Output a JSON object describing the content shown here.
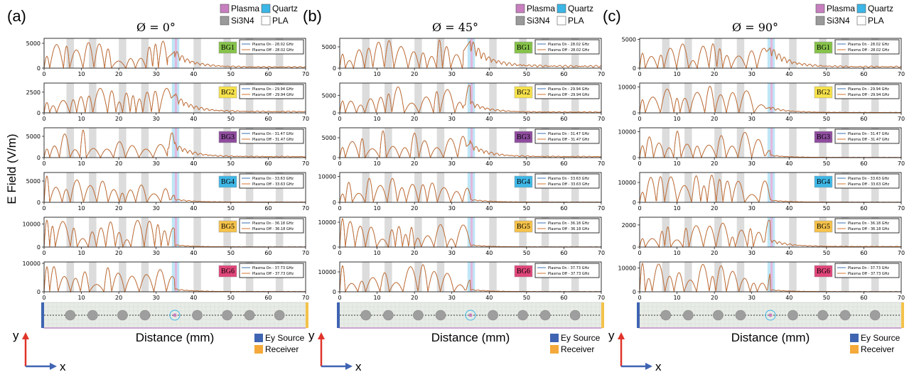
{
  "figure": {
    "panels": [
      {
        "label": "(a)",
        "angle_title": "Ø = 0°"
      },
      {
        "label": "(b)",
        "angle_title": "Ø = 45°"
      },
      {
        "label": "(c)",
        "angle_title": "Ø = 90°"
      }
    ],
    "ylabel": "E Field (V/m)",
    "xlabel": "Distance (mm)",
    "material_legend": [
      {
        "name": "Plasma",
        "color": "#c77fbf"
      },
      {
        "name": "Quartz",
        "color": "#3bb6e6"
      },
      {
        "name": "Si3N4",
        "color": "#9a9a9a"
      },
      {
        "name": "PLA",
        "color": "#ffffff"
      }
    ],
    "source_legend": [
      {
        "name": "Ey Source",
        "color": "#3f64b2"
      },
      {
        "name": "Receiver",
        "color": "#f4a93a"
      }
    ],
    "axis_y": "y",
    "axis_x": "x",
    "bandgaps": [
      {
        "name": "BG1",
        "color": "#86c24a",
        "freq": "28.02 GHz"
      },
      {
        "name": "BG2",
        "color": "#f7e24b",
        "freq": "29.94 GHz"
      },
      {
        "name": "BG3",
        "color": "#8e4c9e",
        "freq": "31.47 GHz"
      },
      {
        "name": "BG4",
        "color": "#3fb7e6",
        "freq": "33.63 GHz"
      },
      {
        "name": "BG5",
        "color": "#f6c24a",
        "freq": "36.18 GHz"
      },
      {
        "name": "BG6",
        "color": "#e0457a",
        "freq": "37.73 GHz"
      }
    ],
    "legend_on_prefix": "Plasma On - ",
    "legend_off_prefix": "Plasma Off - "
  },
  "chart_data": [
    {
      "type": "line",
      "panel": "(a)",
      "angle": "0°",
      "xlim": [
        0,
        70
      ],
      "xticks": [
        0,
        10,
        20,
        30,
        40,
        50,
        60,
        70
      ],
      "series": [
        {
          "name": "Plasma On"
        },
        {
          "name": "Plasma Off"
        }
      ],
      "subplots": [
        {
          "bg": "BG1",
          "ylim": [
            0,
            6000
          ],
          "yticks": [
            0,
            5000
          ],
          "peak": 5600,
          "cut": 3400
        },
        {
          "bg": "BG2",
          "ylim": [
            0,
            3600
          ],
          "yticks": [
            0,
            2500
          ],
          "peak": 3400,
          "cut": 2200
        },
        {
          "bg": "BG3",
          "ylim": [
            0,
            7000
          ],
          "yticks": [
            0,
            5000
          ],
          "peak": 6600,
          "cut": 3300
        },
        {
          "bg": "BG4",
          "ylim": [
            0,
            7000
          ],
          "yticks": [
            0,
            5000
          ],
          "peak": 6200,
          "cut": 800
        },
        {
          "bg": "BG5",
          "ylim": [
            0,
            13000
          ],
          "yticks": [
            0,
            10000
          ],
          "peak": 12500,
          "cut": 1000
        },
        {
          "bg": "BG6",
          "ylim": [
            0,
            10500
          ],
          "yticks": [
            0,
            10000
          ],
          "peak": 10000,
          "cut": 1000
        }
      ]
    },
    {
      "type": "line",
      "panel": "(b)",
      "angle": "45°",
      "xlim": [
        0,
        70
      ],
      "xticks": [
        0,
        10,
        20,
        30,
        40,
        50,
        60,
        70
      ],
      "series": [
        {
          "name": "Plasma On"
        },
        {
          "name": "Plasma Off"
        }
      ],
      "subplots": [
        {
          "bg": "BG1",
          "ylim": [
            0,
            7000
          ],
          "yticks": [
            0,
            5000
          ],
          "peak": 6800,
          "cut": 6500
        },
        {
          "bg": "BG2",
          "ylim": [
            0,
            8500
          ],
          "yticks": [
            0,
            5000
          ],
          "peak": 8000,
          "cut": 3200
        },
        {
          "bg": "BG3",
          "ylim": [
            0,
            7500
          ],
          "yticks": [
            0,
            5000
          ],
          "peak": 7000,
          "cut": 3600
        },
        {
          "bg": "BG4",
          "ylim": [
            0,
            11500
          ],
          "yticks": [
            0,
            10000
          ],
          "peak": 10500,
          "cut": 1200
        },
        {
          "bg": "BG5",
          "ylim": [
            0,
            12000
          ],
          "yticks": [
            0,
            10000
          ],
          "peak": 11500,
          "cut": 900
        },
        {
          "bg": "BG6",
          "ylim": [
            0,
            15000
          ],
          "yticks": [
            0,
            10000
          ],
          "peak": 14000,
          "cut": 1200
        }
      ]
    },
    {
      "type": "line",
      "panel": "(c)",
      "angle": "90°",
      "xlim": [
        0,
        70
      ],
      "xticks": [
        0,
        10,
        20,
        30,
        40,
        50,
        60,
        70
      ],
      "series": [
        {
          "name": "Plasma On"
        },
        {
          "name": "Plasma Off"
        }
      ],
      "subplots": [
        {
          "bg": "BG1",
          "ylim": [
            0,
            5200
          ],
          "yticks": [
            0,
            5000
          ],
          "peak": 4800,
          "cut": 3600
        },
        {
          "bg": "BG2",
          "ylim": [
            0,
            11500
          ],
          "yticks": [
            0,
            10000
          ],
          "peak": 10500,
          "cut": 2200
        },
        {
          "bg": "BG3",
          "ylim": [
            0,
            11500
          ],
          "yticks": [
            0,
            10000
          ],
          "peak": 10800,
          "cut": 1000
        },
        {
          "bg": "BG4",
          "ylim": [
            0,
            15000
          ],
          "yticks": [
            0,
            10000
          ],
          "peak": 14000,
          "cut": 1200
        },
        {
          "bg": "BG5",
          "ylim": [
            0,
            2700
          ],
          "yticks": [
            0,
            2000
          ],
          "peak": 2500,
          "cut": 700
        },
        {
          "bg": "BG6",
          "ylim": [
            0,
            12500
          ],
          "yticks": [
            0,
            10000
          ],
          "peak": 12000,
          "cut": 900
        }
      ]
    }
  ]
}
